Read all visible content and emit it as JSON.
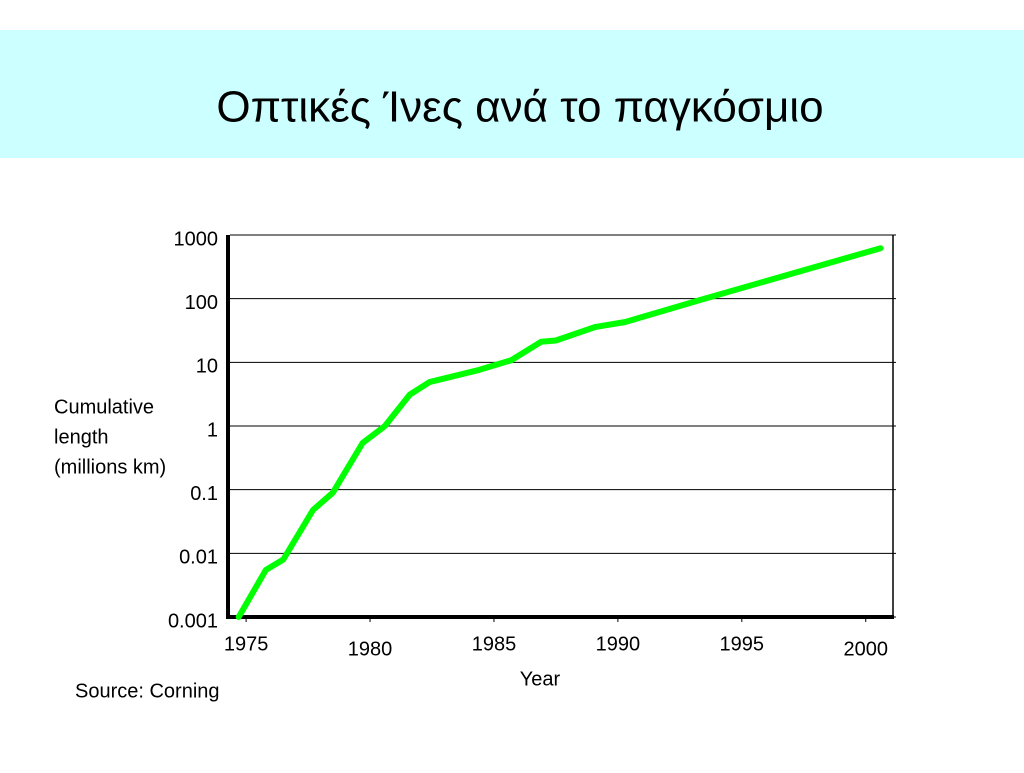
{
  "chart_data": {
    "type": "line",
    "title": "Οπτικές Ίνες ανά το παγκόσμιο",
    "ylabel": [
      "Cumulative",
      "length",
      "(millions km)"
    ],
    "xlabel": "Year",
    "source": "Source: Corning",
    "log_y": true,
    "grid": true,
    "xlim": [
      1974.35,
      2001.1
    ],
    "xticks": [
      1975,
      1980,
      1985,
      1990,
      1995,
      2000
    ],
    "ylim": [
      0.001,
      1000
    ],
    "yticks": [
      0.001,
      0.01,
      0.1,
      1,
      10,
      100,
      1000
    ],
    "series": [
      {
        "color": "#00ff00",
        "x": [
          1974.7,
          1975.8,
          1976.5,
          1977.7,
          1978.5,
          1979.7,
          1980.6,
          1981.6,
          1982.4,
          1984.4,
          1985.7,
          1986.9,
          1987.5,
          1989.1,
          1990.3,
          1993.3,
          2000.6
        ],
        "values": [
          0.001,
          0.0055,
          0.008,
          0.048,
          0.09,
          0.54,
          1,
          3.1,
          4.9,
          7.6,
          10.8,
          21,
          22,
          36,
          43,
          95,
          620
        ]
      }
    ]
  }
}
